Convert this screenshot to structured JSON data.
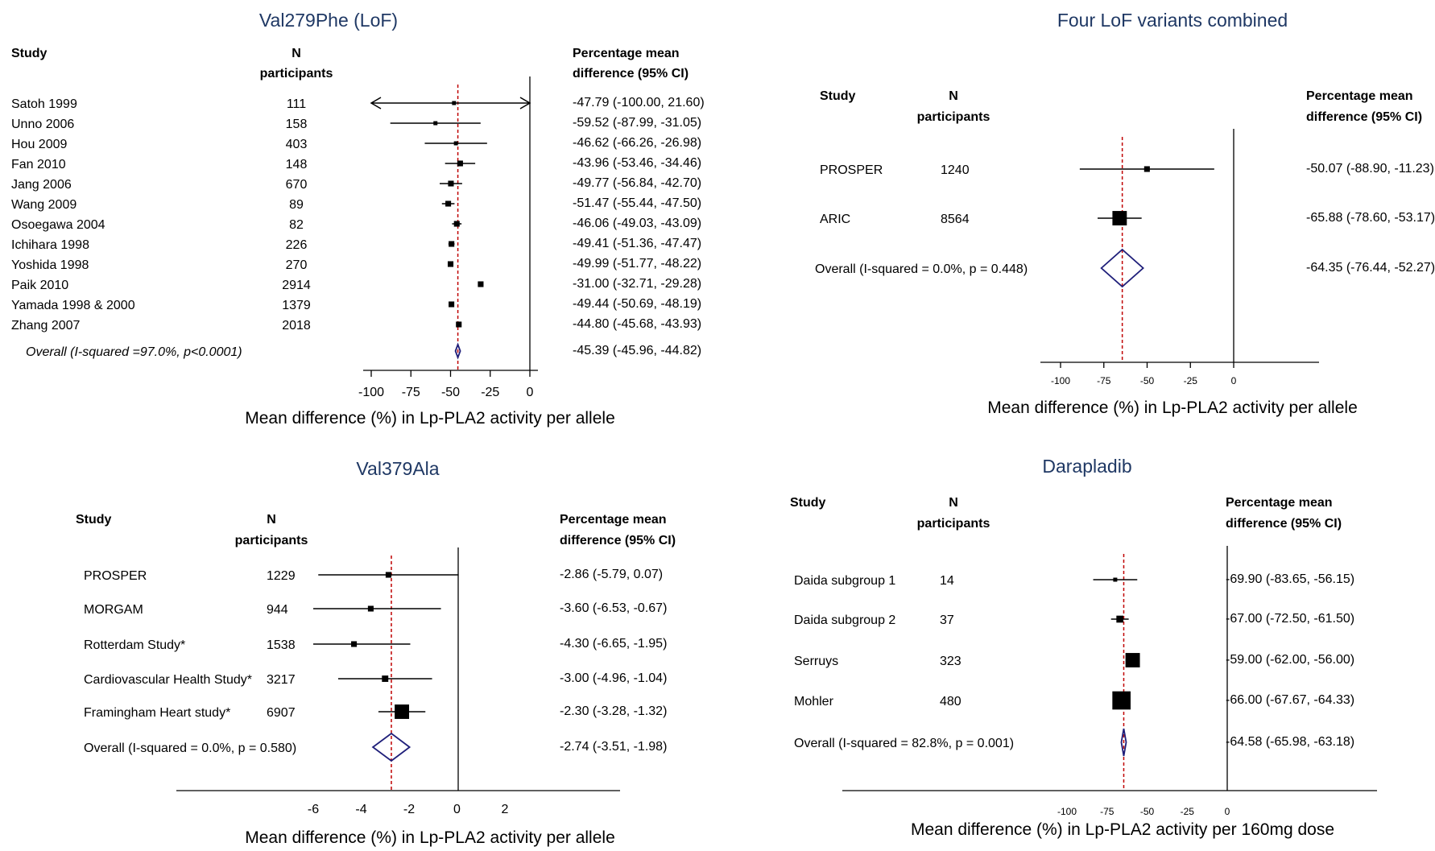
{
  "chart_data": [
    {
      "type": "forest",
      "title": "Val279Phe  (LoF)",
      "headers": {
        "study": "Study",
        "n": [
          "N",
          "participants"
        ],
        "ci": [
          "Percentage mean",
          "difference (95% CI)"
        ]
      },
      "rows": [
        {
          "study": "Satoh 1999",
          "n": "111",
          "ci_text": "-47.79 (-100.00, 21.60)",
          "est": -47.79,
          "lo": -100,
          "hi": 21.6,
          "weight": 1,
          "arrows": "both"
        },
        {
          "study": "Unno 2006",
          "n": "158",
          "ci_text": "-59.52 (-87.99, -31.05)",
          "est": -59.52,
          "lo": -87.99,
          "hi": -31.05,
          "weight": 1
        },
        {
          "study": "Hou 2009",
          "n": "403",
          "ci_text": "-46.62 (-66.26, -26.98)",
          "est": -46.62,
          "lo": -66.26,
          "hi": -26.98,
          "weight": 1
        },
        {
          "study": "Fan 2010",
          "n": "148",
          "ci_text": "-43.96 (-53.46, -34.46)",
          "est": -43.96,
          "lo": -53.46,
          "hi": -34.46,
          "weight": 2
        },
        {
          "study": "Jang 2006",
          "n": "670",
          "ci_text": "-49.77 (-56.84, -42.70)",
          "est": -49.77,
          "lo": -56.84,
          "hi": -42.7,
          "weight": 2
        },
        {
          "study": "Wang 2009",
          "n": "89",
          "ci_text": "-51.47 (-55.44, -47.50)",
          "est": -51.47,
          "lo": -55.44,
          "hi": -47.5,
          "weight": 2
        },
        {
          "study": "Osoegawa 2004",
          "n": "82",
          "ci_text": "-46.06 (-49.03, -43.09)",
          "est": -46.06,
          "lo": -49.03,
          "hi": -43.09,
          "weight": 2
        },
        {
          "study": "Ichihara 1998",
          "n": "226",
          "ci_text": "-49.41 (-51.36, -47.47)",
          "est": -49.41,
          "lo": -51.36,
          "hi": -47.47,
          "weight": 2
        },
        {
          "study": "Yoshida 1998",
          "n": "270",
          "ci_text": "-49.99 (-51.77, -48.22)",
          "est": -49.99,
          "lo": -51.77,
          "hi": -48.22,
          "weight": 2
        },
        {
          "study": "Paik 2010",
          "n": "2914",
          "ci_text": "-31.00 (-32.71, -29.28)",
          "est": -31.0,
          "lo": -32.71,
          "hi": -29.28,
          "weight": 2
        },
        {
          "study": "Yamada 1998 & 2000",
          "n": "1379",
          "ci_text": "-49.44 (-50.69, -48.19)",
          "est": -49.44,
          "lo": -50.69,
          "hi": -48.19,
          "weight": 2
        },
        {
          "study": "Zhang 2007",
          "n": "2018",
          "ci_text": "-44.80 (-45.68, -43.93)",
          "est": -44.8,
          "lo": -45.68,
          "hi": -43.93,
          "weight": 2
        }
      ],
      "overall": {
        "label": "Overall (I-squared =97.0%, p<0.0001)",
        "ci_text": "-45.39 (-45.96, -44.82)",
        "est": -45.39,
        "lo": -45.96,
        "hi": -44.82
      },
      "xticks": [
        -100,
        -75,
        -50,
        -25,
        0
      ],
      "xlim": [
        -100,
        0
      ],
      "xlabel": "Mean difference (%) in Lp-PLA2 activity per allele"
    },
    {
      "type": "forest",
      "title": "Four LoF variants combined",
      "headers": {
        "study": "Study",
        "n": [
          "N",
          "participants"
        ],
        "ci": [
          "Percentage mean",
          "difference (95% CI)"
        ]
      },
      "rows": [
        {
          "study": "PROSPER",
          "n": "1240",
          "ci_text": "-50.07 (-88.90, -11.23)",
          "est": -50.07,
          "lo": -88.9,
          "hi": -11.23,
          "weight": 2
        },
        {
          "study": "ARIC",
          "n": "8564",
          "ci_text": "-65.88 (-78.60, -53.17)",
          "est": -65.88,
          "lo": -78.6,
          "hi": -53.17,
          "weight": 5
        }
      ],
      "overall": {
        "label": "Overall  (I-squared = 0.0%, p = 0.448)",
        "ci_text": "-64.35 (-76.44, -52.27)",
        "est": -64.35,
        "lo": -76.44,
        "hi": -52.27
      },
      "xticks": [
        -100,
        -75,
        -50,
        -25,
        0
      ],
      "xlim": [
        -100,
        0
      ],
      "xlabel": "Mean difference (%) in Lp-PLA2 activity per allele"
    },
    {
      "type": "forest",
      "title": "Val379Ala",
      "headers": {
        "study": "Study",
        "n": [
          "N",
          "participants"
        ],
        "ci": [
          "Percentage mean",
          "difference (95% CI)"
        ]
      },
      "rows": [
        {
          "study": "PROSPER",
          "n": "1229",
          "ci_text": "-2.86 (-5.79, 0.07)",
          "est": -2.86,
          "lo": -5.79,
          "hi": 0.07,
          "weight": 2
        },
        {
          "study": "MORGAM",
          "n": "944",
          "ci_text": "-3.60 (-6.53, -0.67)",
          "est": -3.6,
          "lo": -6.53,
          "hi": -0.67,
          "weight": 2
        },
        {
          "study": "Rotterdam Study*",
          "n": "1538",
          "ci_text": "-4.30 (-6.65, -1.95)",
          "est": -4.3,
          "lo": -6.65,
          "hi": -1.95,
          "weight": 2
        },
        {
          "study": "Cardiovascular Health Study*",
          "n": "3217",
          "ci_text": "-3.00 (-4.96, -1.04)",
          "est": -3.0,
          "lo": -4.96,
          "hi": -1.04,
          "weight": 2.5
        },
        {
          "study": "Framingham Heart study*",
          "n": "6907",
          "ci_text": "-2.30 (-3.28, -1.32)",
          "est": -2.3,
          "lo": -3.28,
          "hi": -1.32,
          "weight": 5
        }
      ],
      "overall": {
        "label": "Overall  (I-squared = 0.0%, p = 0.580)",
        "ci_text": "-2.74 (-3.51, -1.98)",
        "est": -2.74,
        "lo": -3.51,
        "hi": -1.98
      },
      "xticks": [
        -6,
        -4,
        -2,
        0,
        2
      ],
      "xlim": [
        -6,
        2
      ],
      "xlabel": "Mean difference (%) in Lp-PLA2 activity per allele"
    },
    {
      "type": "forest",
      "title": "Darapladib",
      "headers": {
        "study": "Study",
        "n": [
          "N",
          "participants"
        ],
        "ci": [
          "Percentage mean",
          "difference (95% CI)"
        ]
      },
      "rows": [
        {
          "study": "Daida subgroup 1",
          "n": "14",
          "ci_text": "-69.90 (-83.65, -56.15)",
          "est": -69.9,
          "lo": -83.65,
          "hi": -56.15,
          "weight": 1
        },
        {
          "study": "Daida subgroup 2",
          "n": "37",
          "ci_text": "-67.00 (-72.50, -61.50)",
          "est": -67.0,
          "lo": -72.5,
          "hi": -61.5,
          "weight": 3
        },
        {
          "study": "Serruys",
          "n": "323",
          "ci_text": "-59.00 (-62.00, -56.00)",
          "est": -59.0,
          "lo": -62.0,
          "hi": -56.0,
          "weight": 5
        },
        {
          "study": "Mohler",
          "n": "480",
          "ci_text": "-66.00 (-67.67, -64.33)",
          "est": -66.0,
          "lo": -67.67,
          "hi": -64.33,
          "weight": 8
        }
      ],
      "overall": {
        "label": "Overall  (I-squared = 82.8%, p = 0.001)",
        "ci_text": "-64.58 (-65.98, -63.18)",
        "est": -64.58,
        "lo": -65.98,
        "hi": -63.18
      },
      "xticks": [
        -100,
        -75,
        -50,
        -25,
        0
      ],
      "xlim": [
        -100,
        0
      ],
      "xlabel": "Mean difference (%) in Lp-PLA2 activity per 160mg dose"
    }
  ],
  "colors": {
    "title": "#1f3864",
    "reference_line": "#c00000",
    "diamond": "#1f1f7a",
    "marker": "#000000"
  }
}
